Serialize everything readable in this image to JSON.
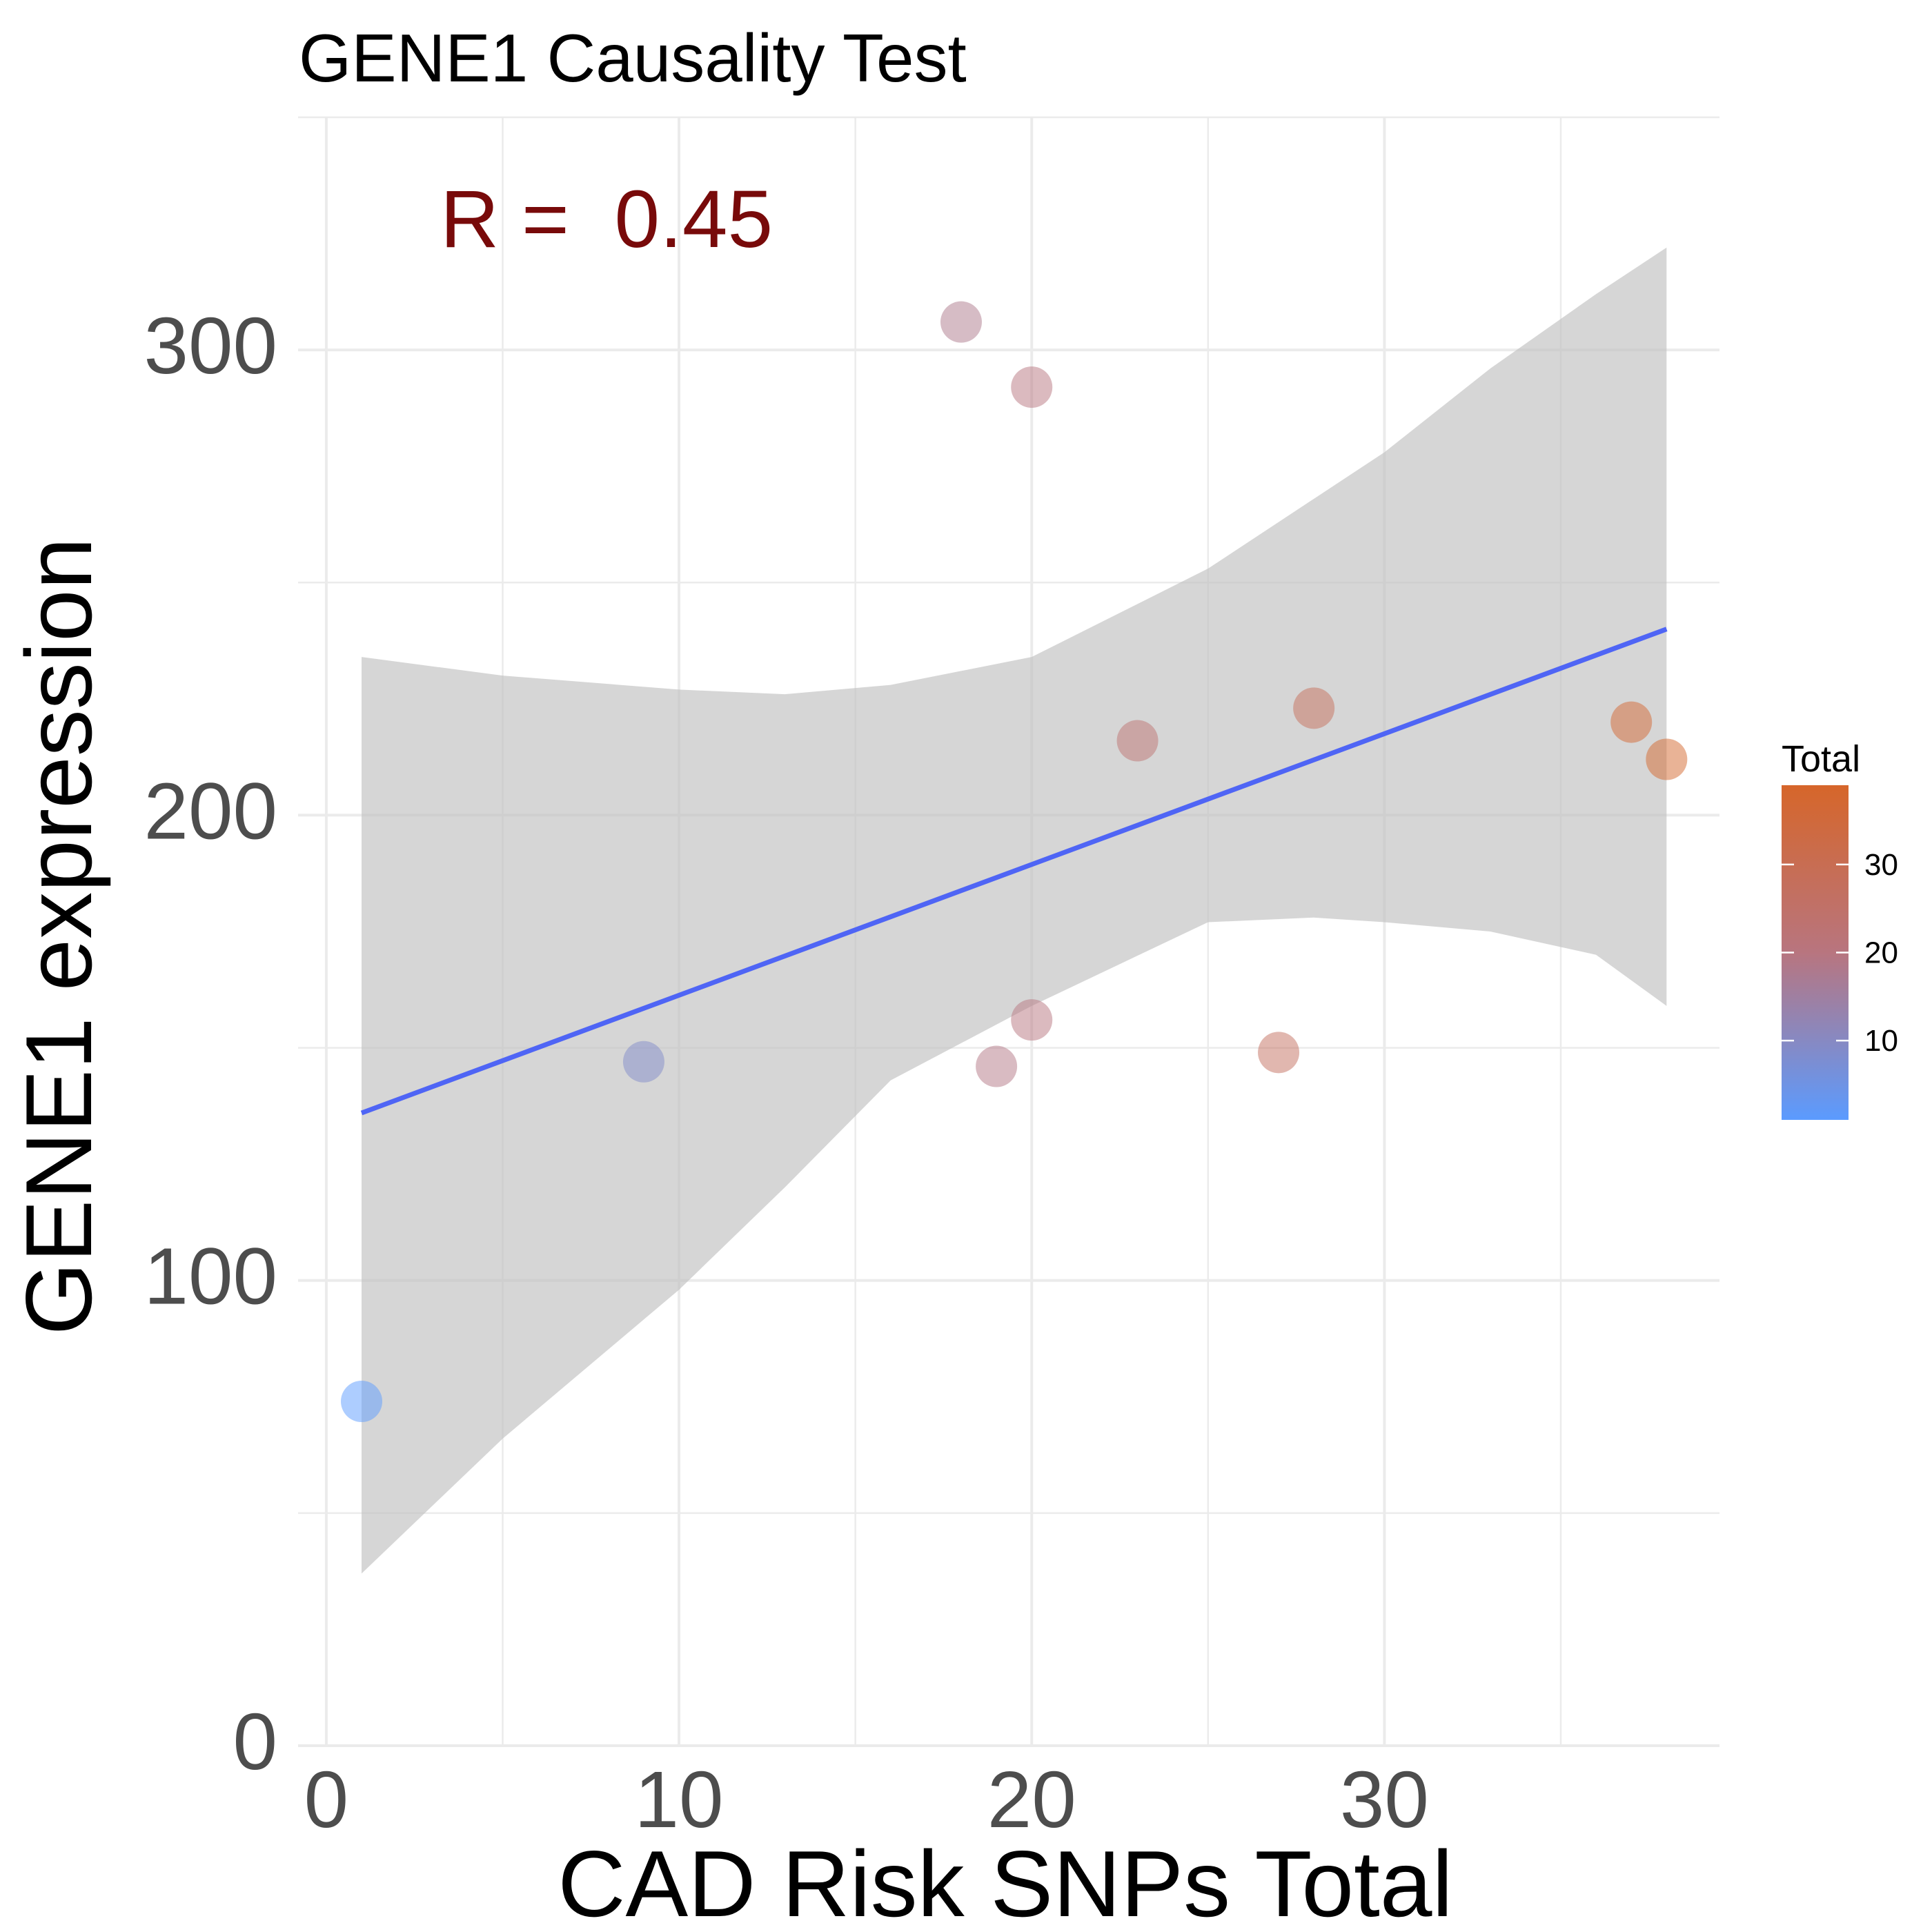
{
  "chart_data": {
    "type": "scatter",
    "title": "GENE1 Causality Test",
    "xlabel": "CAD Risk SNPs Total",
    "ylabel": "GENE1 expression",
    "annotation": "R =  0.45",
    "xlim": [
      -0.8,
      39.5
    ],
    "ylim": [
      0,
      350
    ],
    "x_ticks": [
      0,
      10,
      20,
      30
    ],
    "y_ticks": [
      0,
      100,
      200,
      300
    ],
    "grid": true,
    "points": [
      {
        "x": 1,
        "y": 74,
        "color": 1
      },
      {
        "x": 9,
        "y": 147,
        "color": 9
      },
      {
        "x": 18,
        "y": 306,
        "color": 18
      },
      {
        "x": 19,
        "y": 146,
        "color": 19
      },
      {
        "x": 20,
        "y": 292,
        "color": 20
      },
      {
        "x": 20,
        "y": 156,
        "color": 20
      },
      {
        "x": 23,
        "y": 216,
        "color": 23
      },
      {
        "x": 27,
        "y": 149,
        "color": 27
      },
      {
        "x": 28,
        "y": 223,
        "color": 28
      },
      {
        "x": 37,
        "y": 220,
        "color": 37
      },
      {
        "x": 38,
        "y": 212,
        "color": 38
      }
    ],
    "fit_line": {
      "x": [
        1,
        38
      ],
      "y": [
        136,
        240
      ],
      "color": "#4f65f5"
    },
    "confidence_band": {
      "x": [
        1,
        5,
        10,
        13,
        16,
        20,
        25,
        28,
        30,
        33,
        36,
        38
      ],
      "upper": [
        234,
        230,
        227,
        226,
        228,
        234,
        253,
        268,
        278,
        296,
        312,
        322
      ],
      "lower": [
        37,
        66,
        98,
        120,
        143,
        159,
        177,
        178,
        177,
        175,
        170,
        159
      ]
    },
    "colorbar": {
      "title": "Total",
      "ticks": [
        10,
        20,
        30
      ],
      "min": 1,
      "max": 39,
      "low_color": "#5b9bff",
      "mid_color": "#b8757f",
      "high_color": "#d6662a"
    },
    "legend_position": "right"
  }
}
